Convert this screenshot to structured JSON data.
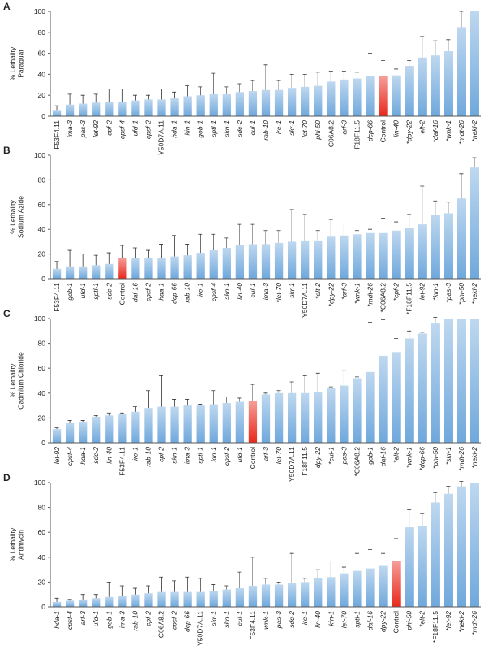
{
  "chart_data": [
    {
      "type": "bar",
      "label": "A",
      "ylabel": [
        "% Lethality",
        "Paraquat"
      ],
      "ylim": [
        0,
        100
      ],
      "yticks": [
        0,
        20,
        40,
        60,
        80,
        100
      ],
      "categories": [
        "F53F4.11",
        "ima-3",
        "pas-3",
        "let-92",
        "cpf-2",
        "cpsf-4",
        "ufd-1",
        "cpsf-2",
        "Y50D7A.11",
        "hda-1",
        "kin-1",
        "gob-1",
        "sptl-1",
        "skn-1",
        "sdc-2",
        "cul-1",
        "rab-10",
        "ire-1",
        "skr-1",
        "let-70",
        "phi-50",
        "C06A8.2",
        "arf-3",
        "F18F11.5",
        "dcp-66",
        "Control",
        "lin-40",
        "*dpy-22",
        "elt-2",
        "*daf-16",
        "*wnk-1",
        "*mdt-26",
        "*nekl-2"
      ],
      "values": [
        6,
        11,
        12,
        13,
        14,
        14,
        15,
        16,
        16,
        17,
        19,
        20,
        21,
        21,
        23,
        24,
        25,
        25,
        27,
        28,
        29,
        33,
        35,
        36,
        38,
        38,
        39,
        48,
        56,
        58,
        62,
        85,
        100
      ],
      "errors": [
        4,
        10,
        8,
        8,
        12,
        12,
        5,
        4,
        10,
        6,
        10,
        8,
        20,
        7,
        8,
        10,
        24,
        9,
        13,
        12,
        13,
        10,
        8,
        6,
        22,
        15,
        6,
        5,
        20,
        14,
        11,
        15,
        0
      ],
      "colors": [
        "#6fa8dc",
        "#6fa8dc",
        "#6fa8dc",
        "#6fa8dc",
        "#6fa8dc",
        "#6fa8dc",
        "#6fa8dc",
        "#6fa8dc",
        "#6fa8dc",
        "#6fa8dc",
        "#6fa8dc",
        "#6fa8dc",
        "#6fa8dc",
        "#6fa8dc",
        "#6fa8dc",
        "#6fa8dc",
        "#6fa8dc",
        "#6fa8dc",
        "#6fa8dc",
        "#6fa8dc",
        "#6fa8dc",
        "#6fa8dc",
        "#6fa8dc",
        "#6fa8dc",
        "#6fa8dc",
        "#e8281c",
        "#6fa8dc",
        "#6fa8dc",
        "#6fa8dc",
        "#6fa8dc",
        "#6fa8dc",
        "#6fa8dc",
        "#6fa8dc"
      ]
    },
    {
      "type": "bar",
      "label": "B",
      "ylabel": [
        "% Lethality",
        "Sodium Azide"
      ],
      "ylim": [
        0,
        100
      ],
      "yticks": [
        0,
        20,
        40,
        60,
        80,
        100
      ],
      "categories": [
        "F53F4.11",
        "gob-1",
        "ufd-1",
        "sptl-1",
        "sdc-2",
        "Control",
        "daf-16",
        "cpsf-2",
        "hda-1",
        "dcp-66",
        "rab-10",
        "ire-1",
        "cpsf-4",
        "skn-1",
        "lin-40",
        "cul-1",
        "ima-3",
        "*let-70",
        "skr-1",
        "Y50D7A.11",
        "*elt-2",
        "*dpy-22",
        "*arf-3",
        "*wnk-1",
        "*mdt-26",
        "*C06A8.2",
        "*cpf-2",
        "*F18F11.5",
        "let-92",
        "*kin-1",
        "*pas-3",
        "*phi-50",
        "*nekl-2"
      ],
      "values": [
        8,
        10,
        10,
        11,
        12,
        17,
        17,
        17,
        17,
        18,
        19,
        21,
        23,
        25,
        27,
        28,
        28,
        29,
        30,
        31,
        31,
        34,
        35,
        36,
        37,
        37,
        39,
        41,
        44,
        52,
        53,
        65,
        90
      ],
      "errors": [
        6,
        13,
        10,
        8,
        9,
        10,
        8,
        6,
        11,
        17,
        9,
        15,
        13,
        8,
        17,
        16,
        11,
        10,
        26,
        21,
        8,
        14,
        10,
        3,
        3,
        12,
        7,
        11,
        31,
        11,
        9,
        20,
        8
      ],
      "colors": [
        "#6fa8dc",
        "#6fa8dc",
        "#6fa8dc",
        "#6fa8dc",
        "#6fa8dc",
        "#e8281c",
        "#6fa8dc",
        "#6fa8dc",
        "#6fa8dc",
        "#6fa8dc",
        "#6fa8dc",
        "#6fa8dc",
        "#6fa8dc",
        "#6fa8dc",
        "#6fa8dc",
        "#6fa8dc",
        "#6fa8dc",
        "#6fa8dc",
        "#6fa8dc",
        "#6fa8dc",
        "#6fa8dc",
        "#6fa8dc",
        "#6fa8dc",
        "#6fa8dc",
        "#6fa8dc",
        "#6fa8dc",
        "#6fa8dc",
        "#6fa8dc",
        "#6fa8dc",
        "#6fa8dc",
        "#6fa8dc",
        "#6fa8dc",
        "#6fa8dc"
      ]
    },
    {
      "type": "bar",
      "label": "C",
      "ylabel": [
        "% Lethality",
        "Cadmium Chloride"
      ],
      "ylim": [
        0,
        100
      ],
      "yticks": [
        0,
        20,
        40,
        60,
        80,
        100
      ],
      "categories": [
        "let-92",
        "cpsf-4",
        "hda-1",
        "sdc-2",
        "lin-40",
        "F53F4.11",
        "ire-1",
        "rab-10",
        "cpf-2",
        "skn-1",
        "ima-3",
        "sptl-1",
        "kin-1",
        "cpsf-2",
        "ufd-1",
        "Control",
        "arf-3",
        "let-70",
        "Y50D7A.11",
        "F18F11.5",
        "dpy-22",
        "*cul-1",
        "pas-3",
        "*C06A8.2",
        "gob-1",
        "daf-16",
        "*elt-2",
        "*wnk-1",
        "*dcp-66",
        "*phi-50",
        "*skr-1",
        "*mdt-26",
        "*nekl-2"
      ],
      "values": [
        11,
        16,
        17,
        21,
        22,
        23,
        25,
        28,
        29,
        29,
        30,
        30,
        31,
        32,
        33,
        34,
        39,
        40,
        40,
        40,
        41,
        44,
        46,
        52,
        57,
        70,
        73,
        84,
        88,
        96,
        100,
        100,
        100
      ],
      "errors": [
        1,
        2,
        1,
        1,
        2,
        1,
        4,
        14,
        25,
        6,
        5,
        1,
        11,
        5,
        3,
        13,
        1,
        2,
        9,
        14,
        15,
        1,
        12,
        1,
        40,
        29,
        11,
        6,
        1,
        5,
        0,
        0,
        0
      ],
      "colors": [
        "#6fa8dc",
        "#6fa8dc",
        "#6fa8dc",
        "#6fa8dc",
        "#6fa8dc",
        "#6fa8dc",
        "#6fa8dc",
        "#6fa8dc",
        "#6fa8dc",
        "#6fa8dc",
        "#6fa8dc",
        "#6fa8dc",
        "#6fa8dc",
        "#6fa8dc",
        "#6fa8dc",
        "#e8281c",
        "#6fa8dc",
        "#6fa8dc",
        "#6fa8dc",
        "#6fa8dc",
        "#6fa8dc",
        "#6fa8dc",
        "#6fa8dc",
        "#6fa8dc",
        "#6fa8dc",
        "#6fa8dc",
        "#6fa8dc",
        "#6fa8dc",
        "#6fa8dc",
        "#6fa8dc",
        "#6fa8dc",
        "#6fa8dc",
        "#6fa8dc"
      ]
    },
    {
      "type": "bar",
      "label": "D",
      "ylabel": [
        "% Lethality",
        "Antimycin"
      ],
      "ylim": [
        0,
        100
      ],
      "yticks": [
        0,
        20,
        40,
        60,
        80,
        100
      ],
      "categories": [
        "hda-1",
        "cpsf-4",
        "arf-3",
        "ufd-1",
        "gob-1",
        "ima-3",
        "rab-10",
        "cpf-2",
        "C06A8.2",
        "cpsf-2",
        "dcp-66",
        "Y50D7A.11",
        "skr-1",
        "skn-1",
        "cul-1",
        "F53F4.11",
        "wnk-1",
        "pas-3",
        "sdc-2",
        "ire-1",
        "lin-40",
        "kin-1",
        "let-70",
        "sptl-1",
        "daf-16",
        "dpy-22",
        "Control",
        "phi-50",
        "*elt-2",
        "*F18F11.5",
        "*let-92",
        "*nekl-2",
        "*mdt-26"
      ],
      "values": [
        4,
        5,
        6,
        7,
        8,
        9,
        10,
        11,
        12,
        12,
        12,
        12,
        13,
        14,
        15,
        17,
        18,
        18,
        19,
        20,
        23,
        24,
        27,
        29,
        31,
        33,
        37,
        64,
        65,
        84,
        91,
        97,
        100
      ],
      "errors": [
        3,
        1,
        4,
        3,
        12,
        8,
        5,
        6,
        12,
        9,
        12,
        11,
        5,
        3,
        13,
        23,
        5,
        2,
        24,
        3,
        7,
        13,
        5,
        14,
        15,
        10,
        18,
        14,
        10,
        8,
        6,
        4,
        0
      ],
      "colors": [
        "#6fa8dc",
        "#6fa8dc",
        "#6fa8dc",
        "#6fa8dc",
        "#6fa8dc",
        "#6fa8dc",
        "#6fa8dc",
        "#6fa8dc",
        "#6fa8dc",
        "#6fa8dc",
        "#6fa8dc",
        "#6fa8dc",
        "#6fa8dc",
        "#6fa8dc",
        "#6fa8dc",
        "#6fa8dc",
        "#6fa8dc",
        "#6fa8dc",
        "#6fa8dc",
        "#6fa8dc",
        "#6fa8dc",
        "#6fa8dc",
        "#6fa8dc",
        "#6fa8dc",
        "#6fa8dc",
        "#6fa8dc",
        "#e8281c",
        "#6fa8dc",
        "#6fa8dc",
        "#6fa8dc",
        "#6fa8dc",
        "#6fa8dc",
        "#6fa8dc"
      ]
    }
  ]
}
